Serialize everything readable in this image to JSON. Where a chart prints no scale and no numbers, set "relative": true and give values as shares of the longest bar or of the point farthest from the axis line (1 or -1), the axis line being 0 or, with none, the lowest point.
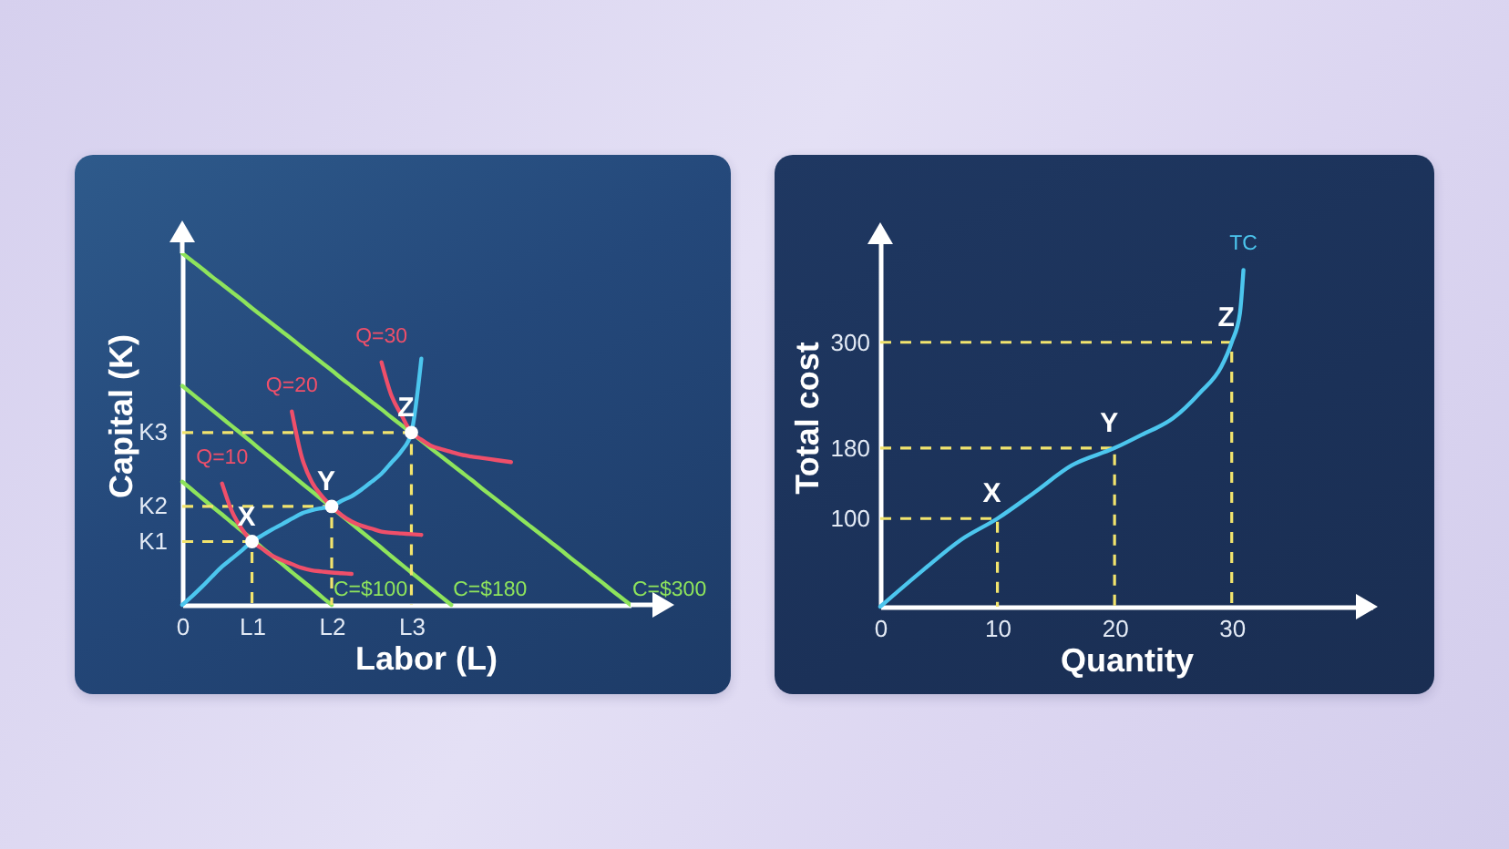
{
  "chart_data": [
    {
      "type": "line",
      "relative": true,
      "xlabel": "Labor (L)",
      "ylabel": "Capital (K)",
      "categories": [
        "0",
        null,
        null,
        null,
        null,
        null,
        null,
        "L1",
        null,
        null,
        null,
        null,
        null,
        null,
        null,
        "L2",
        null,
        null,
        null,
        null,
        null,
        null,
        null,
        "L3",
        null,
        null,
        null,
        null,
        null,
        null,
        null,
        null,
        null,
        null,
        null,
        null,
        null,
        null,
        null,
        null,
        null,
        null,
        null,
        null,
        null,
        null
      ],
      "series": [
        {
          "name": "C=$100",
          "color": "#8ee45c",
          "values": [
            0.35,
            0.327,
            0.303,
            0.28,
            0.257,
            0.233,
            0.21,
            0.187,
            0.163,
            0.14,
            0.117,
            0.093,
            0.07,
            0.047,
            0.023,
            0,
            null,
            null,
            null,
            null,
            null,
            null,
            null,
            null,
            null,
            null,
            null,
            null,
            null,
            null,
            null,
            null,
            null,
            null,
            null,
            null,
            null,
            null,
            null,
            null,
            null,
            null,
            null,
            null,
            null,
            null
          ]
        },
        {
          "name": "C=$180",
          "color": "#8ee45c",
          "values": [
            0.623,
            0.6,
            0.577,
            0.554,
            0.531,
            0.508,
            0.485,
            0.462,
            0.438,
            0.415,
            0.392,
            0.369,
            0.346,
            0.323,
            0.3,
            0.277,
            0.254,
            0.231,
            0.208,
            0.185,
            0.162,
            0.138,
            0.115,
            0.092,
            0.069,
            0.046,
            0.023,
            0,
            null,
            null,
            null,
            null,
            null,
            null,
            null,
            null,
            null,
            null,
            null,
            null,
            null,
            null,
            null,
            null,
            null,
            null
          ]
        },
        {
          "name": "C=$300",
          "color": "#8ee45c",
          "values": [
            1,
            0.978,
            0.956,
            0.933,
            0.911,
            0.889,
            0.867,
            0.844,
            0.822,
            0.8,
            0.778,
            0.756,
            0.733,
            0.711,
            0.689,
            0.667,
            0.644,
            0.622,
            0.6,
            0.578,
            0.556,
            0.533,
            0.511,
            0.489,
            0.467,
            0.444,
            0.422,
            0.4,
            0.378,
            0.356,
            0.333,
            0.311,
            0.289,
            0.267,
            0.244,
            0.222,
            0.2,
            0.178,
            0.156,
            0.133,
            0.111,
            0.089,
            0.067,
            0.044,
            0.022,
            0
          ]
        },
        {
          "type": "step",
          "color": "#f2e46d",
          "line_style": "dashed",
          "values": [
            0.18,
            0.18,
            0.18,
            0.18,
            0.18,
            0.18,
            0.18,
            0,
            null,
            null,
            null,
            null,
            null,
            null,
            null,
            null,
            null,
            null,
            null,
            null,
            null,
            null,
            null,
            null,
            null,
            null,
            null,
            null,
            null,
            null,
            null,
            null,
            null,
            null,
            null,
            null,
            null,
            null,
            null,
            null,
            null,
            null,
            null,
            null,
            null,
            null
          ]
        },
        {
          "type": "step",
          "color": "#f2e46d",
          "line_style": "dashed",
          "values": [
            0.28,
            0.28,
            0.28,
            0.28,
            0.28,
            0.28,
            0.28,
            0.28,
            0.28,
            0.28,
            0.28,
            0.28,
            0.28,
            0.28,
            0.28,
            0,
            null,
            null,
            null,
            null,
            null,
            null,
            null,
            null,
            null,
            null,
            null,
            null,
            null,
            null,
            null,
            null,
            null,
            null,
            null,
            null,
            null,
            null,
            null,
            null,
            null,
            null,
            null,
            null,
            null,
            null
          ]
        },
        {
          "type": "step",
          "color": "#f2e46d",
          "line_style": "dashed",
          "values": [
            0.49,
            0.49,
            0.49,
            0.49,
            0.49,
            0.49,
            0.49,
            0.49,
            0.49,
            0.49,
            0.49,
            0.49,
            0.49,
            0.49,
            0.49,
            0.49,
            0.49,
            0.49,
            0.49,
            0.49,
            0.49,
            0.49,
            0.49,
            0,
            null,
            null,
            null,
            null,
            null,
            null,
            null,
            null,
            null,
            null,
            null,
            null,
            null,
            null,
            null,
            null,
            null,
            null,
            null,
            null,
            null,
            null
          ]
        },
        {
          "name": "Q=10",
          "color": "#ef4f6a",
          "values": [
            null,
            null,
            null,
            null,
            0.345,
            0.265,
            0.215,
            0.18,
            0.16,
            0.14,
            0.127,
            0.116,
            0.105,
            0.098,
            0.095,
            0.092,
            0.09,
            0.088,
            null,
            null,
            null,
            null,
            null,
            null,
            null,
            null,
            null,
            null,
            null,
            null,
            null,
            null,
            null,
            null,
            null,
            null,
            null,
            null,
            null,
            null,
            null,
            null,
            null,
            null,
            null,
            null
          ]
        },
        {
          "name": "Q=20",
          "color": "#ef4f6a",
          "values": [
            null,
            null,
            null,
            null,
            null,
            null,
            null,
            null,
            null,
            null,
            null,
            0.55,
            0.42,
            0.35,
            0.31,
            0.28,
            0.255,
            0.237,
            0.225,
            0.217,
            0.208,
            0.205,
            0.203,
            0.201,
            0.199,
            null,
            null,
            null,
            null,
            null,
            null,
            null,
            null,
            null,
            null,
            null,
            null,
            null,
            null,
            null,
            null,
            null,
            null,
            null,
            null,
            null
          ]
        },
        {
          "name": "Q=30",
          "color": "#ef4f6a",
          "values": [
            null,
            null,
            null,
            null,
            null,
            null,
            null,
            null,
            null,
            null,
            null,
            null,
            null,
            null,
            null,
            null,
            null,
            null,
            null,
            null,
            0.69,
            0.595,
            0.54,
            0.49,
            0.47,
            0.452,
            0.443,
            0.435,
            0.427,
            0.422,
            0.418,
            0.414,
            0.41,
            0.406,
            null,
            null,
            null,
            null,
            null,
            null,
            null,
            null,
            null,
            null,
            null,
            null
          ]
        },
        {
          "color": "#4cc6ee",
          "values": [
            0,
            0.025,
            0.052,
            0.081,
            0.109,
            0.132,
            0.155,
            0.18,
            0.197,
            0.214,
            0.229,
            0.245,
            0.26,
            0.269,
            0.275,
            0.28,
            0.296,
            0.309,
            0.328,
            0.35,
            0.373,
            0.405,
            0.437,
            0.49,
            0.7,
            null,
            null,
            null,
            null,
            null,
            null,
            null,
            null,
            null,
            null,
            null,
            null,
            null,
            null,
            null,
            null,
            null,
            null,
            null,
            null,
            null
          ]
        },
        {
          "type": "scatter",
          "marker": "circle",
          "color": "#ffffff",
          "values": [
            null,
            null,
            null,
            null,
            null,
            null,
            null,
            0.18,
            null,
            null,
            null,
            null,
            null,
            null,
            null,
            0.28,
            null,
            null,
            null,
            null,
            null,
            null,
            null,
            0.49,
            null,
            null,
            null,
            null,
            null,
            null,
            null,
            null,
            null,
            null,
            null,
            null,
            null,
            null,
            null,
            null,
            null,
            null,
            null,
            null,
            null,
            null
          ]
        }
      ],
      "annotations": [
        {
          "text": "X",
          "x": "L1",
          "y": 0.18
        },
        {
          "text": "Y",
          "x": "L2",
          "y": 0.28
        },
        {
          "text": "Z",
          "x": "L3",
          "y": 0.49
        },
        {
          "text": "K1",
          "x": "0",
          "y": 0.18
        },
        {
          "text": "K2",
          "x": "0",
          "y": 0.28
        },
        {
          "text": "K3",
          "x": "0",
          "y": 0.49
        }
      ]
    },
    {
      "type": "line",
      "xlabel": "Quantity",
      "ylabel": "Total cost",
      "xlim": [
        0,
        42
      ],
      "ylim": [
        0,
        430
      ],
      "xticks": [
        0,
        10,
        20,
        30
      ],
      "yticks": [
        100,
        180,
        300
      ],
      "series": [
        {
          "color": "#f2e46d",
          "line_style": "dashed",
          "x": [
            0,
            10,
            10
          ],
          "values": [
            100,
            100,
            0
          ]
        },
        {
          "color": "#f2e46d",
          "line_style": "dashed",
          "x": [
            0,
            20,
            20
          ],
          "values": [
            180,
            180,
            0
          ]
        },
        {
          "color": "#f2e46d",
          "line_style": "dashed",
          "x": [
            0,
            30,
            30
          ],
          "values": [
            300,
            300,
            0
          ]
        },
        {
          "name": "TC",
          "color": "#4cc6ee",
          "x": [
            0,
            3.7,
            6.9,
            10,
            13.2,
            16.3,
            20,
            22.3,
            25,
            27.3,
            29.1,
            30,
            30.7,
            31
          ],
          "values": [
            0,
            42,
            76,
            100,
            130,
            160,
            180,
            195,
            214,
            243,
            272,
            300,
            333,
            382
          ]
        }
      ],
      "annotations": [
        {
          "text": "X",
          "x": 10,
          "y": 100
        },
        {
          "text": "Y",
          "x": 20,
          "y": 180
        },
        {
          "text": "Z",
          "x": 30,
          "y": 300
        }
      ]
    }
  ]
}
